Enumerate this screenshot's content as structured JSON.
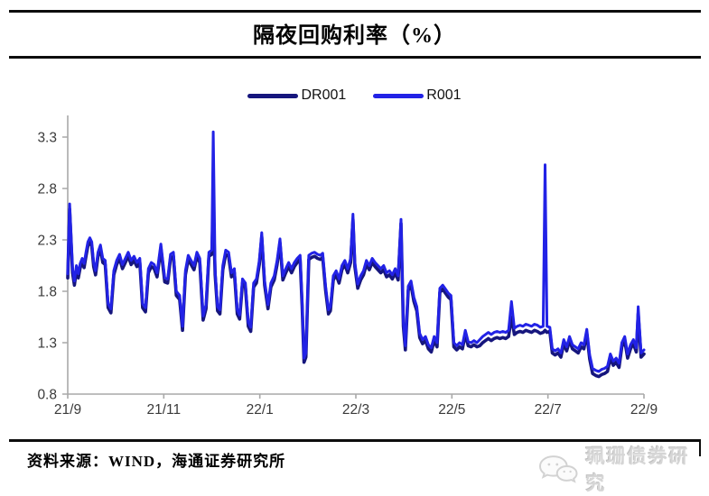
{
  "header": {
    "title": "隔夜回购利率（%）"
  },
  "legend": [
    {
      "label": "DR001",
      "color": "#16167d"
    },
    {
      "label": "R001",
      "color": "#2222e6"
    }
  ],
  "footer": {
    "source_label": "资料来源：WIND，海通证券研究所",
    "logo_text": "珮珊债券研究",
    "logo_icon": "wechat-bubbles-icon"
  },
  "colors": {
    "dr001_line": "#16167d",
    "r001_line": "#2222e6",
    "axis": "#a9a9a9",
    "tick_label": "#3a3a3a",
    "rule": "#0d0d0d",
    "logo_gray": "#d6d6d6"
  },
  "chart_data": {
    "type": "line",
    "title": "隔夜回购利率（%）",
    "legend_position": "top-center",
    "grid": false,
    "x_axis": {
      "tick_labels": [
        "21/9",
        "21/11",
        "22/1",
        "22/3",
        "22/5",
        "22/7",
        "22/9"
      ],
      "tick_month_index": [
        0,
        2,
        4,
        6,
        8,
        10,
        12
      ],
      "range_months": [
        0,
        12
      ]
    },
    "y_axis": {
      "ticks": [
        0.8,
        1.3,
        1.8,
        2.3,
        2.8,
        3.3
      ],
      "min": 0.8,
      "max": 3.3,
      "unit": "%"
    },
    "series_names": [
      "DR001",
      "R001"
    ],
    "columns": [
      "month_index_from_21_09",
      "DR001",
      "R001"
    ],
    "points": [
      [
        0.0,
        1.93,
        1.97
      ],
      [
        0.04,
        2.6,
        2.65
      ],
      [
        0.1,
        1.98,
        2.02
      ],
      [
        0.14,
        1.86,
        1.9
      ],
      [
        0.18,
        2.01,
        2.05
      ],
      [
        0.22,
        1.93,
        1.97
      ],
      [
        0.26,
        2.03,
        2.07
      ],
      [
        0.3,
        2.08,
        2.12
      ],
      [
        0.34,
        2.03,
        2.07
      ],
      [
        0.38,
        2.14,
        2.18
      ],
      [
        0.42,
        2.24,
        2.28
      ],
      [
        0.46,
        2.28,
        2.32
      ],
      [
        0.5,
        2.24,
        2.28
      ],
      [
        0.54,
        2.04,
        2.08
      ],
      [
        0.58,
        1.96,
        2.0
      ],
      [
        0.63,
        2.14,
        2.18
      ],
      [
        0.68,
        2.21,
        2.25
      ],
      [
        0.73,
        2.08,
        2.12
      ],
      [
        0.78,
        2.06,
        2.1
      ],
      [
        0.84,
        1.64,
        1.68
      ],
      [
        0.9,
        1.59,
        1.63
      ],
      [
        0.96,
        1.96,
        2.0
      ],
      [
        1.02,
        2.06,
        2.1
      ],
      [
        1.08,
        2.12,
        2.16
      ],
      [
        1.14,
        2.02,
        2.06
      ],
      [
        1.2,
        2.08,
        2.12
      ],
      [
        1.26,
        2.14,
        2.18
      ],
      [
        1.32,
        2.06,
        2.1
      ],
      [
        1.38,
        2.1,
        2.14
      ],
      [
        1.44,
        2.04,
        2.08
      ],
      [
        1.5,
        2.08,
        2.12
      ],
      [
        1.56,
        1.64,
        1.68
      ],
      [
        1.62,
        1.6,
        1.64
      ],
      [
        1.68,
        1.98,
        2.02
      ],
      [
        1.74,
        2.04,
        2.08
      ],
      [
        1.8,
        2.02,
        2.06
      ],
      [
        1.86,
        1.94,
        1.98
      ],
      [
        1.94,
        2.22,
        2.26
      ],
      [
        2.02,
        1.89,
        1.93
      ],
      [
        2.08,
        1.88,
        1.92
      ],
      [
        2.14,
        2.12,
        2.16
      ],
      [
        2.2,
        2.14,
        2.18
      ],
      [
        2.26,
        1.76,
        1.8
      ],
      [
        2.33,
        1.72,
        1.76
      ],
      [
        2.39,
        1.42,
        1.46
      ],
      [
        2.45,
        1.96,
        2.0
      ],
      [
        2.51,
        2.11,
        2.15
      ],
      [
        2.57,
        2.06,
        2.1
      ],
      [
        2.63,
        2.01,
        2.05
      ],
      [
        2.69,
        2.14,
        2.18
      ],
      [
        2.75,
        2.08,
        2.12
      ],
      [
        2.82,
        1.52,
        1.56
      ],
      [
        2.88,
        1.63,
        1.67
      ],
      [
        2.94,
        2.14,
        2.18
      ],
      [
        3.0,
        2.16,
        2.2
      ],
      [
        3.03,
        2.6,
        3.35
      ],
      [
        3.07,
        1.96,
        2.0
      ],
      [
        3.12,
        1.61,
        1.65
      ],
      [
        3.17,
        1.58,
        1.62
      ],
      [
        3.23,
        2.01,
        2.05
      ],
      [
        3.29,
        2.16,
        2.2
      ],
      [
        3.35,
        2.14,
        2.18
      ],
      [
        3.41,
        1.94,
        1.98
      ],
      [
        3.47,
        1.98,
        2.02
      ],
      [
        3.53,
        1.58,
        1.62
      ],
      [
        3.58,
        1.53,
        1.57
      ],
      [
        3.64,
        1.88,
        1.92
      ],
      [
        3.7,
        1.84,
        1.88
      ],
      [
        3.76,
        1.46,
        1.5
      ],
      [
        3.81,
        1.41,
        1.45
      ],
      [
        3.87,
        1.84,
        1.88
      ],
      [
        3.93,
        1.88,
        1.92
      ],
      [
        3.99,
        2.06,
        2.1
      ],
      [
        4.04,
        2.33,
        2.37
      ],
      [
        4.1,
        1.86,
        1.9
      ],
      [
        4.17,
        1.63,
        1.67
      ],
      [
        4.23,
        1.84,
        1.88
      ],
      [
        4.3,
        1.91,
        1.95
      ],
      [
        4.36,
        2.06,
        2.1
      ],
      [
        4.42,
        2.27,
        2.31
      ],
      [
        4.48,
        1.91,
        1.95
      ],
      [
        4.54,
        1.98,
        2.02
      ],
      [
        4.6,
        2.04,
        2.08
      ],
      [
        4.66,
        1.98,
        2.02
      ],
      [
        4.72,
        2.04,
        2.08
      ],
      [
        4.78,
        2.08,
        2.12
      ],
      [
        4.84,
        2.11,
        2.15
      ],
      [
        4.88,
        1.66,
        1.7
      ],
      [
        4.92,
        1.11,
        1.15
      ],
      [
        4.96,
        1.16,
        1.2
      ],
      [
        5.02,
        2.11,
        2.15
      ],
      [
        5.08,
        2.13,
        2.17
      ],
      [
        5.14,
        2.14,
        2.18
      ],
      [
        5.2,
        2.12,
        2.16
      ],
      [
        5.26,
        2.11,
        2.15
      ],
      [
        5.31,
        2.13,
        2.17
      ],
      [
        5.37,
        1.81,
        1.85
      ],
      [
        5.43,
        1.58,
        1.62
      ],
      [
        5.47,
        1.61,
        1.65
      ],
      [
        5.53,
        1.91,
        1.95
      ],
      [
        5.59,
        1.96,
        2.0
      ],
      [
        5.65,
        1.88,
        1.92
      ],
      [
        5.71,
        2.01,
        2.05
      ],
      [
        5.77,
        2.06,
        2.1
      ],
      [
        5.83,
        1.98,
        2.02
      ],
      [
        5.89,
        2.08,
        2.12
      ],
      [
        5.94,
        2.5,
        2.55
      ],
      [
        5.98,
        2.04,
        2.08
      ],
      [
        6.04,
        1.83,
        1.87
      ],
      [
        6.1,
        1.91,
        1.95
      ],
      [
        6.16,
        1.96,
        2.0
      ],
      [
        6.22,
        2.06,
        2.1
      ],
      [
        6.28,
        2.01,
        2.05
      ],
      [
        6.34,
        2.08,
        2.12
      ],
      [
        6.4,
        2.04,
        2.08
      ],
      [
        6.46,
        2.01,
        2.05
      ],
      [
        6.52,
        1.98,
        2.02
      ],
      [
        6.58,
        2.01,
        2.05
      ],
      [
        6.64,
        1.94,
        1.98
      ],
      [
        6.7,
        1.96,
        2.0
      ],
      [
        6.76,
        1.92,
        1.96
      ],
      [
        6.82,
        1.98,
        2.02
      ],
      [
        6.88,
        1.91,
        1.95
      ],
      [
        6.94,
        2.46,
        2.5
      ],
      [
        6.99,
        1.46,
        1.5
      ],
      [
        7.03,
        1.23,
        1.27
      ],
      [
        7.09,
        1.81,
        1.85
      ],
      [
        7.15,
        1.86,
        1.9
      ],
      [
        7.21,
        1.7,
        1.74
      ],
      [
        7.27,
        1.61,
        1.65
      ],
      [
        7.33,
        1.35,
        1.39
      ],
      [
        7.39,
        1.29,
        1.33
      ],
      [
        7.45,
        1.32,
        1.36
      ],
      [
        7.51,
        1.24,
        1.28
      ],
      [
        7.57,
        1.21,
        1.25
      ],
      [
        7.63,
        1.32,
        1.36
      ],
      [
        7.69,
        1.26,
        1.3
      ],
      [
        7.75,
        1.79,
        1.83
      ],
      [
        7.81,
        1.82,
        1.86
      ],
      [
        7.87,
        1.78,
        1.82
      ],
      [
        7.93,
        1.74,
        1.78
      ],
      [
        7.98,
        1.72,
        1.76
      ],
      [
        8.04,
        1.26,
        1.3
      ],
      [
        8.1,
        1.23,
        1.27
      ],
      [
        8.16,
        1.26,
        1.3
      ],
      [
        8.22,
        1.24,
        1.28
      ],
      [
        8.28,
        1.38,
        1.42
      ],
      [
        8.34,
        1.27,
        1.31
      ],
      [
        8.4,
        1.26,
        1.3
      ],
      [
        8.46,
        1.28,
        1.32
      ],
      [
        8.52,
        1.26,
        1.3
      ],
      [
        8.58,
        1.27,
        1.33
      ],
      [
        8.64,
        1.3,
        1.36
      ],
      [
        8.7,
        1.32,
        1.38
      ],
      [
        8.76,
        1.34,
        1.4
      ],
      [
        8.82,
        1.32,
        1.38
      ],
      [
        8.88,
        1.34,
        1.4
      ],
      [
        8.94,
        1.35,
        1.41
      ],
      [
        9.0,
        1.34,
        1.4
      ],
      [
        9.06,
        1.35,
        1.41
      ],
      [
        9.12,
        1.34,
        1.4
      ],
      [
        9.18,
        1.36,
        1.42
      ],
      [
        9.24,
        1.55,
        1.7
      ],
      [
        9.3,
        1.38,
        1.44
      ],
      [
        9.36,
        1.4,
        1.46
      ],
      [
        9.42,
        1.41,
        1.47
      ],
      [
        9.48,
        1.4,
        1.46
      ],
      [
        9.54,
        1.42,
        1.48
      ],
      [
        9.6,
        1.41,
        1.47
      ],
      [
        9.66,
        1.4,
        1.46
      ],
      [
        9.72,
        1.42,
        1.48
      ],
      [
        9.78,
        1.41,
        1.47
      ],
      [
        9.84,
        1.39,
        1.45
      ],
      [
        9.9,
        1.4,
        1.46
      ],
      [
        9.94,
        1.42,
        3.03
      ],
      [
        9.98,
        1.4,
        1.46
      ],
      [
        10.04,
        1.41,
        1.45
      ],
      [
        10.09,
        1.2,
        1.24
      ],
      [
        10.15,
        1.18,
        1.22
      ],
      [
        10.21,
        1.2,
        1.24
      ],
      [
        10.27,
        1.16,
        1.2
      ],
      [
        10.33,
        1.29,
        1.33
      ],
      [
        10.39,
        1.22,
        1.26
      ],
      [
        10.45,
        1.32,
        1.36
      ],
      [
        10.51,
        1.24,
        1.28
      ],
      [
        10.57,
        1.22,
        1.26
      ],
      [
        10.63,
        1.2,
        1.24
      ],
      [
        10.69,
        1.26,
        1.3
      ],
      [
        10.75,
        1.24,
        1.28
      ],
      [
        10.81,
        1.39,
        1.43
      ],
      [
        10.87,
        1.14,
        1.18
      ],
      [
        10.93,
        1.0,
        1.05
      ],
      [
        11.0,
        0.98,
        1.03
      ],
      [
        11.06,
        0.97,
        1.02
      ],
      [
        11.12,
        0.99,
        1.04
      ],
      [
        11.18,
        1.0,
        1.05
      ],
      [
        11.24,
        1.02,
        1.07
      ],
      [
        11.3,
        1.15,
        1.19
      ],
      [
        11.36,
        1.08,
        1.12
      ],
      [
        11.42,
        1.11,
        1.15
      ],
      [
        11.48,
        1.06,
        1.1
      ],
      [
        11.54,
        1.26,
        1.3
      ],
      [
        11.6,
        1.32,
        1.36
      ],
      [
        11.66,
        1.15,
        1.19
      ],
      [
        11.72,
        1.24,
        1.28
      ],
      [
        11.78,
        1.29,
        1.33
      ],
      [
        11.84,
        1.21,
        1.25
      ],
      [
        11.88,
        1.58,
        1.65
      ],
      [
        11.94,
        1.16,
        1.2
      ],
      [
        12.0,
        1.19,
        1.23
      ]
    ]
  }
}
